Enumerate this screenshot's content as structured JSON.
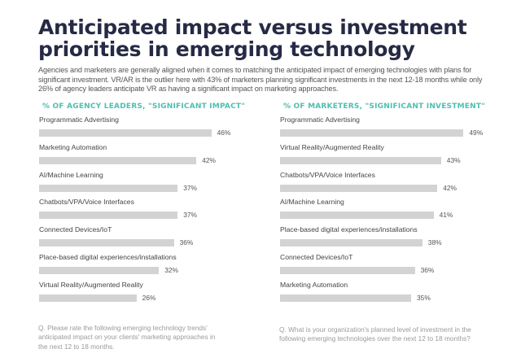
{
  "title": "Anticipated impact versus investment priorities in emerging technology",
  "intro": "Agencies and marketers are generally aligned when it comes to matching the anticipated impact of emerging technologies with plans for significant investment. VR/AR is the outlier here with 43% of marketers planning significant investments in the next 12-18 months while only 26% of agency leaders anticipate VR as having a significant impact on marketing approaches.",
  "colors": {
    "title": "#262a45",
    "panel_title": "#4fbfae",
    "bar": "#d3d3d3"
  },
  "chart_data": [
    {
      "type": "bar",
      "orientation": "horizontal",
      "title": "% OF AGENCY LEADERS, \"SIGNIFICANT IMPACT\"",
      "categories": [
        "Programmatic Advertising",
        "Marketing Automation",
        "AI/Machine Learning",
        "Chatbots/VPA/Voice Interfaces",
        "Connected Devices/IoT",
        "Place-based digital experiences/installations",
        "Virtual Reality/Augmented Reality"
      ],
      "values": [
        46,
        42,
        37,
        37,
        36,
        32,
        26
      ],
      "labels": [
        "46%",
        "42%",
        "37%",
        "37%",
        "36%",
        "32%",
        "26%"
      ],
      "unit": "%",
      "footnote": "Q. Please rate the following emerging technology trends' anticipated impact on your clients' marketing approaches in the next 12 to 18 months."
    },
    {
      "type": "bar",
      "orientation": "horizontal",
      "title": "% OF MARKETERS, \"SIGNIFICANT INVESTMENT\"",
      "categories": [
        "Programmatic Advertising",
        "Virtual Reality/Augmented Reality",
        "Chatbots/VPA/Voice Interfaces",
        "AI/Machine Learning",
        "Place-based digital experiences/installations",
        "Connected Devices/IoT",
        "Marketing Automation"
      ],
      "values": [
        49,
        43,
        42,
        41,
        38,
        36,
        35
      ],
      "labels": [
        "49%",
        "43%",
        "42%",
        "41%",
        "38%",
        "36%",
        "35%"
      ],
      "unit": "%",
      "footnote": "Q. What is your organization's planned level of investment in the following emerging technologies over the next 12 to 18 months?"
    }
  ]
}
